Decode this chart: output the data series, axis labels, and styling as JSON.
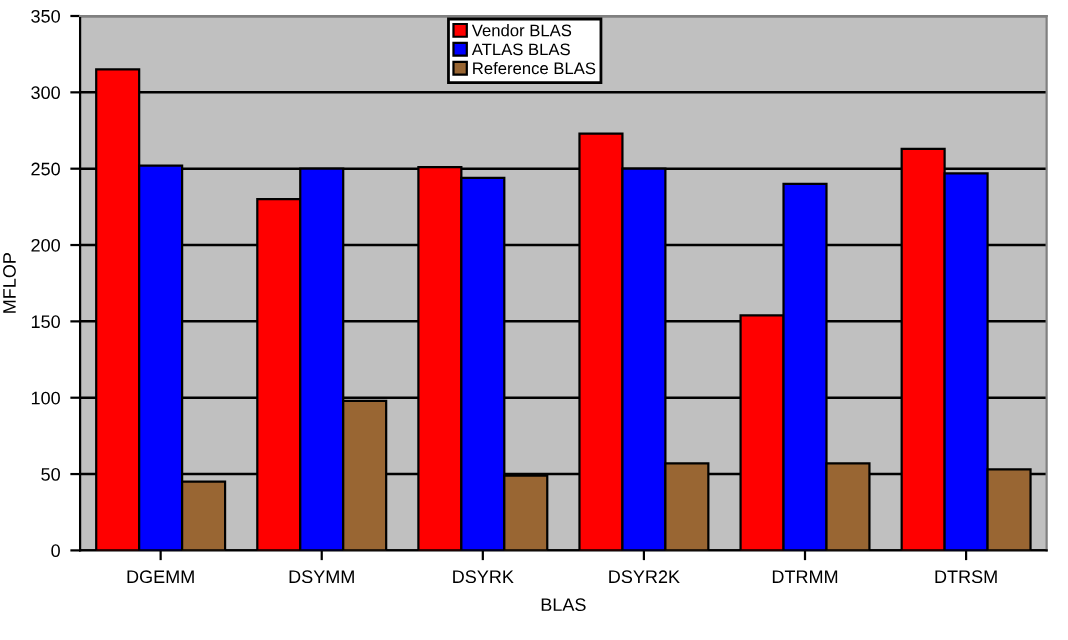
{
  "chart_data": {
    "type": "bar",
    "xlabel": "BLAS",
    "ylabel": "MFLOP",
    "categories": [
      "DGEMM",
      "DSYMM",
      "DSYRK",
      "DSYR2K",
      "DTRMM",
      "DTRSM"
    ],
    "series": [
      {
        "name": "Vendor BLAS",
        "color": "#ff0000",
        "values": [
          315,
          230,
          251,
          273,
          154,
          263
        ]
      },
      {
        "name": "ATLAS BLAS",
        "color": "#0000ff",
        "values": [
          252,
          250,
          244,
          250,
          240,
          247
        ]
      },
      {
        "name": "Reference BLAS",
        "color": "#996633",
        "values": [
          45,
          98,
          49,
          57,
          57,
          53
        ]
      }
    ],
    "ylim": [
      0,
      350
    ],
    "yticks": [
      0,
      50,
      100,
      150,
      200,
      250,
      300,
      350
    ],
    "grid": "y",
    "legend": "top"
  }
}
